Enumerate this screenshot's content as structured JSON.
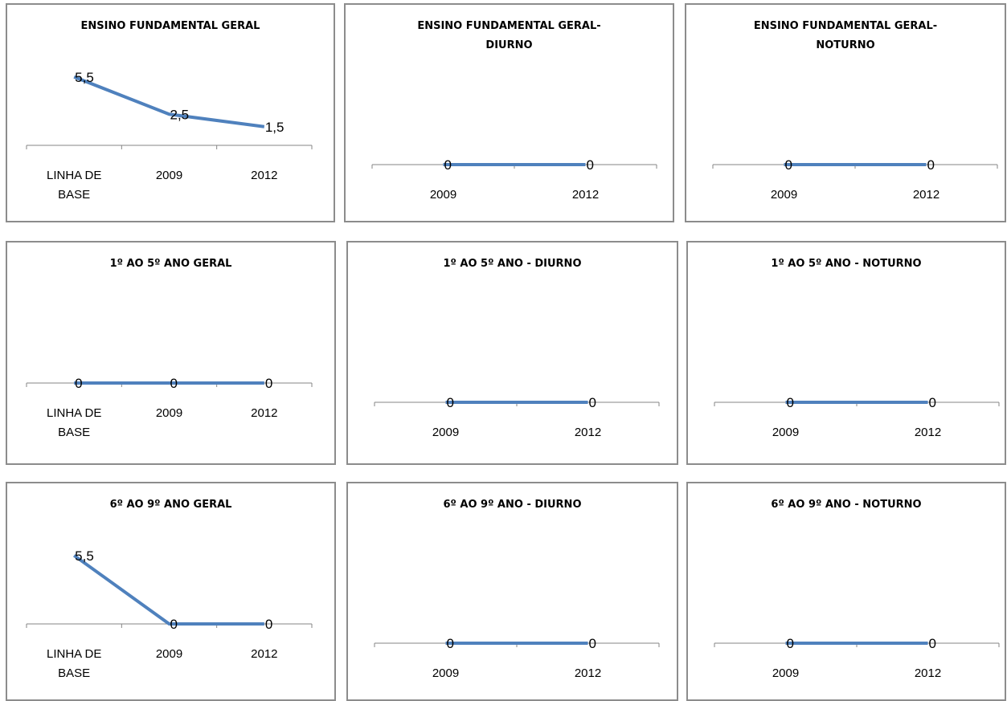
{
  "colors": {
    "series": "#4f81bd",
    "axis": "#868686",
    "border": "#8c8c8c"
  },
  "chart_data": [
    {
      "type": "line",
      "title": [
        "ENSINO FUNDAMENTAL GERAL"
      ],
      "categories": [
        [
          "LINHA DE",
          "BASE"
        ],
        [
          "2009"
        ],
        [
          "2012"
        ]
      ],
      "values": [
        5.5,
        2.5,
        1.5
      ],
      "data_labels": [
        "5,5",
        "2,5",
        "1,5"
      ],
      "ylim": [
        0,
        6
      ],
      "grid": false,
      "legend": "none"
    },
    {
      "type": "line",
      "title": [
        "ENSINO FUNDAMENTAL GERAL-",
        "DIURNO"
      ],
      "categories": [
        [
          "2009"
        ],
        [
          "2012"
        ]
      ],
      "values": [
        0,
        0
      ],
      "data_labels": [
        "0",
        "0"
      ],
      "ylim": [
        0,
        1
      ],
      "grid": false,
      "legend": "none"
    },
    {
      "type": "line",
      "title": [
        "ENSINO FUNDAMENTAL GERAL-",
        "NOTURNO"
      ],
      "categories": [
        [
          "2009"
        ],
        [
          "2012"
        ]
      ],
      "values": [
        0,
        0
      ],
      "data_labels": [
        "0",
        "0"
      ],
      "ylim": [
        0,
        1
      ],
      "grid": false,
      "legend": "none"
    },
    {
      "type": "line",
      "title": [
        "1º AO 5º ANO GERAL"
      ],
      "categories": [
        [
          "LINHA DE",
          "BASE"
        ],
        [
          "2009"
        ],
        [
          "2012"
        ]
      ],
      "values": [
        0,
        0,
        0
      ],
      "data_labels": [
        "0",
        "0",
        "0"
      ],
      "ylim": [
        0,
        1
      ],
      "grid": false,
      "legend": "none"
    },
    {
      "type": "line",
      "title": [
        "1º AO 5º ANO - DIURNO"
      ],
      "categories": [
        [
          "2009"
        ],
        [
          "2012"
        ]
      ],
      "values": [
        0,
        0
      ],
      "data_labels": [
        "0",
        "0"
      ],
      "ylim": [
        0,
        1
      ],
      "grid": false,
      "legend": "none"
    },
    {
      "type": "line",
      "title": [
        "1º AO 5º ANO - NOTURNO"
      ],
      "categories": [
        [
          "2009"
        ],
        [
          "2012"
        ]
      ],
      "values": [
        0,
        0
      ],
      "data_labels": [
        "0",
        "0"
      ],
      "ylim": [
        0,
        1
      ],
      "grid": false,
      "legend": "none"
    },
    {
      "type": "line",
      "title": [
        "6º AO 9º ANO GERAL"
      ],
      "categories": [
        [
          "LINHA DE",
          "BASE"
        ],
        [
          "2009"
        ],
        [
          "2012"
        ]
      ],
      "values": [
        5.5,
        0,
        0
      ],
      "data_labels": [
        "5,5",
        "0",
        "0"
      ],
      "ylim": [
        0,
        6
      ],
      "grid": false,
      "legend": "none"
    },
    {
      "type": "line",
      "title": [
        "6º AO 9º ANO - DIURNO"
      ],
      "categories": [
        [
          "2009"
        ],
        [
          "2012"
        ]
      ],
      "values": [
        0,
        0
      ],
      "data_labels": [
        "0",
        "0"
      ],
      "ylim": [
        0,
        1
      ],
      "grid": false,
      "legend": "none"
    },
    {
      "type": "line",
      "title": [
        "6º AO 9º ANO - NOTURNO"
      ],
      "categories": [
        [
          "2009"
        ],
        [
          "2012"
        ]
      ],
      "values": [
        0,
        0
      ],
      "data_labels": [
        "0",
        "0"
      ],
      "ylim": [
        0,
        1
      ],
      "grid": false,
      "legend": "none"
    }
  ]
}
